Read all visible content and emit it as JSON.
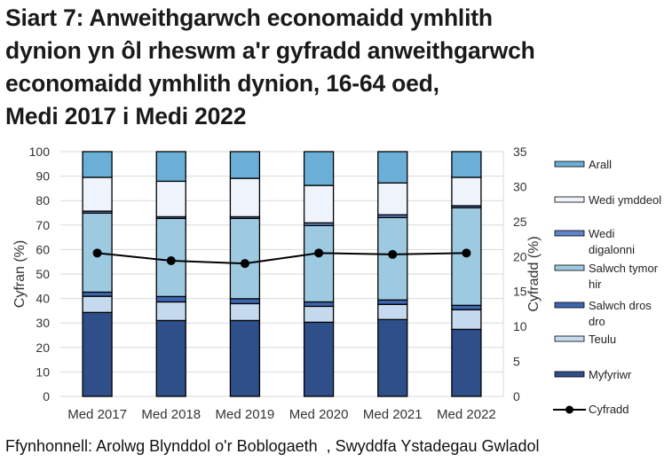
{
  "title": "Siart 7: Anweithgarwch economaidd ymhlith dynion yn ôl rheswm a'r gyfradd anweithgarwch economaidd ymhlith dynion, 16-64 oed, Medi 2017 i Medi 2022",
  "title_lines": [
    "Siart 7: Anweithgarwch economaidd ymhlith",
    "dynion yn ôl rheswm a'r gyfradd anweithgarwch",
    "economaidd ymhlith dynion, 16-64 oed,",
    "Medi 2017 i Medi 2022"
  ],
  "source": "Ffynhonnell: Arolwg Blynddol o'r Boblogaeth  , Swyddfa Ystadegau Gwladol",
  "chart_data": {
    "type": "bar",
    "stacked": true,
    "title": "Siart 7: Anweithgarwch economaidd ymhlith dynion yn ôl rheswm a'r gyfradd anweithgarwch economaidd ymhlith dynion, 16-64 oed, Medi 2017 i Medi 2022",
    "categories": [
      "Med 2017",
      "Med 2018",
      "Med 2019",
      "Med 2020",
      "Med 2021",
      "Med 2022"
    ],
    "xlabel": "",
    "ylabel": "Cyfran (%)",
    "ylim": [
      0,
      100
    ],
    "yticks": [
      0,
      10,
      20,
      30,
      40,
      50,
      60,
      70,
      80,
      90,
      100
    ],
    "y2label": "Cyfradd (%)",
    "y2lim": [
      0,
      35
    ],
    "y2ticks": [
      0,
      5,
      10,
      15,
      20,
      25,
      30,
      35
    ],
    "grid": true,
    "legend_position": "right",
    "series": [
      {
        "name": "Myfyriwr",
        "axis": "left",
        "kind": "bar",
        "color": "#2F4F8A",
        "values": [
          34.3,
          31.0,
          31.0,
          30.3,
          31.4,
          27.4
        ]
      },
      {
        "name": "Teulu",
        "axis": "left",
        "kind": "bar",
        "color": "#C6DAEF",
        "values": [
          6.6,
          7.6,
          6.9,
          6.5,
          6.2,
          8.0
        ]
      },
      {
        "name": "Salwch dros dro",
        "axis": "left",
        "kind": "bar",
        "color": "#3D66AE",
        "values": [
          1.7,
          2.2,
          2.0,
          1.8,
          1.8,
          1.8
        ]
      },
      {
        "name": "Salwch tymor hir",
        "axis": "left",
        "kind": "bar",
        "color": "#9ECAE1",
        "values": [
          32.3,
          31.9,
          32.8,
          31.2,
          33.7,
          39.9
        ]
      },
      {
        "name": "Wedi digalonni",
        "axis": "left",
        "kind": "bar",
        "color": "#6283CB",
        "values": [
          0.8,
          0.7,
          0.7,
          1.1,
          1.1,
          0.8
        ]
      },
      {
        "name": "Wedi ymddeol",
        "axis": "left",
        "kind": "bar",
        "color": "#EEF3FC",
        "values": [
          13.8,
          14.5,
          15.7,
          15.3,
          13.0,
          11.6
        ]
      },
      {
        "name": "Arall",
        "axis": "left",
        "kind": "bar",
        "color": "#6BAED6",
        "values": [
          10.5,
          12.1,
          10.9,
          13.8,
          12.8,
          10.5
        ]
      },
      {
        "name": "Cyfradd",
        "axis": "right",
        "kind": "line",
        "color": "#000000",
        "values": [
          20.5,
          19.4,
          19.0,
          20.5,
          20.3,
          20.5
        ]
      }
    ],
    "legend": [
      "Arall",
      "Wedi ymddeol",
      "Wedi digalonni",
      "Salwch tymor hir",
      "Salwch dros dro",
      "Teulu",
      "Myfyriwr",
      "Cyfradd"
    ]
  }
}
